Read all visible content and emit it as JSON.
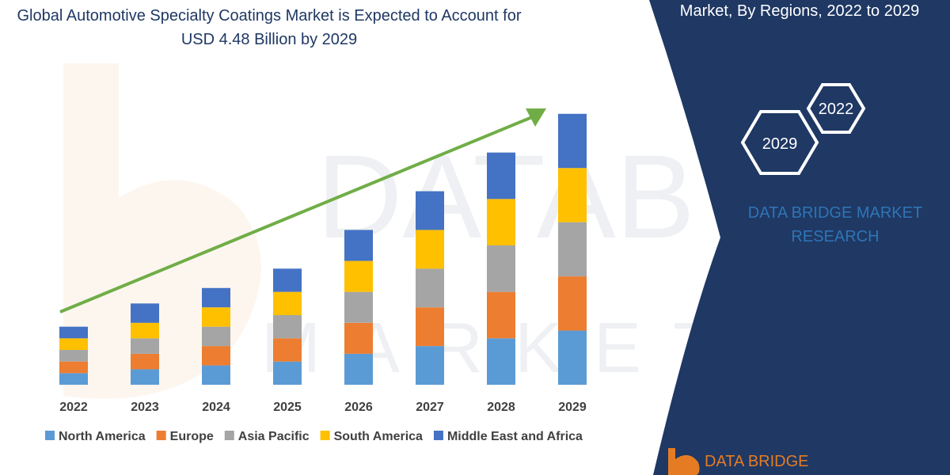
{
  "title": "Global Automotive Specialty Coatings Market is Expected to Account for USD 4.48 Billion by 2029",
  "panel": {
    "title": "Market, By Regions, 2022 to 2029",
    "hex_badges": [
      "2022",
      "2029"
    ],
    "brand": "DATA BRIDGE MARKET RESEARCH",
    "logo_text": "DATA BRIDGE"
  },
  "colors": {
    "panel_bg": "#1f3864",
    "accent_text": "#2e75b6",
    "trend_arrow": "#70ad47",
    "logo": "#e57c23"
  },
  "chart_data": {
    "type": "bar",
    "stacked": true,
    "title": "Global Automotive Specialty Coatings Market is Expected to Account for USD 4.48 Billion by 2029",
    "categories": [
      "2022",
      "2023",
      "2024",
      "2025",
      "2026",
      "2027",
      "2028",
      "2029"
    ],
    "series": [
      {
        "name": "North America",
        "color": "#5b9bd5",
        "values": [
          15,
          20,
          25,
          30,
          40,
          50,
          60,
          70
        ]
      },
      {
        "name": "Europe",
        "color": "#ed7d31",
        "values": [
          15,
          20,
          25,
          30,
          40,
          50,
          60,
          70
        ]
      },
      {
        "name": "Asia Pacific",
        "color": "#a5a5a5",
        "values": [
          15,
          20,
          25,
          30,
          40,
          50,
          60,
          70
        ]
      },
      {
        "name": "South America",
        "color": "#ffc000",
        "values": [
          15,
          20,
          25,
          30,
          40,
          50,
          60,
          70
        ]
      },
      {
        "name": "Middle East and Africa",
        "color": "#4472c4",
        "values": [
          15,
          25,
          25,
          30,
          40,
          50,
          60,
          70
        ]
      }
    ],
    "ylim": [
      0,
      360
    ],
    "grid": false,
    "legend": "bottom",
    "trend_arrow": true
  }
}
